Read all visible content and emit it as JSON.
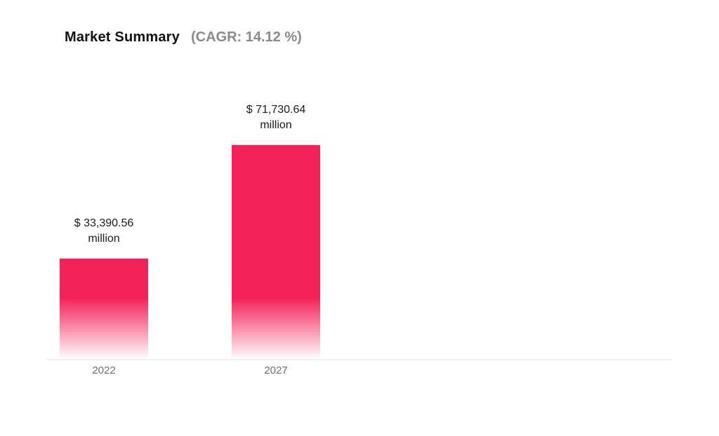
{
  "chart_data": {
    "type": "bar",
    "title": "Market Summary",
    "subtitle": "(CAGR: 14.12 %)",
    "categories": [
      "2022",
      "2027"
    ],
    "values": [
      33390.56,
      71730.64
    ],
    "value_labels": [
      [
        "$ 33,390.56",
        "million"
      ],
      [
        "$ 71,730.64",
        "million"
      ]
    ],
    "xlabel": "",
    "ylabel": "",
    "ylim": [
      0,
      71730.64
    ],
    "grid": false,
    "legend": "none",
    "bar_color": "#f5225a"
  }
}
